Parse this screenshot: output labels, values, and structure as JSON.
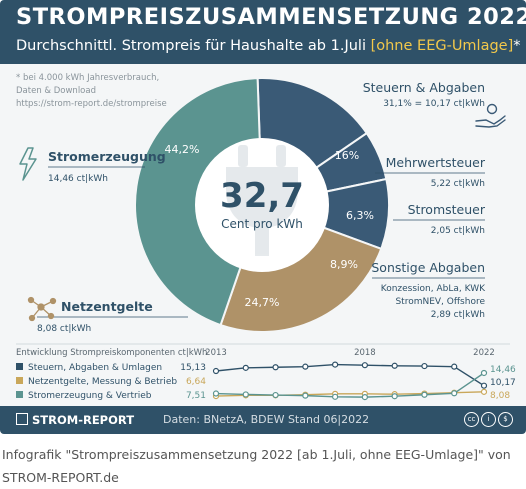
{
  "header": {
    "title": "STROMPREISZUSAMMENSETZUNG 2022",
    "subtitle_main": "Durchschnittl. Strompreis für Haushalte ab 1.Juli",
    "subtitle_highlight": "[ohne EEG-Umlage]",
    "subtitle_end": "*"
  },
  "notes": [
    "* bei 4.000 kWh Jahresverbrauch,",
    "Daten & Download",
    "https://strom-report.de/strompreise"
  ],
  "center": {
    "value": "32,7",
    "unit": "Cent pro kWh"
  },
  "chart_data": [
    {
      "type": "pie",
      "title": "STROMPREISZUSAMMENSETZUNG 2022",
      "slices": [
        {
          "label": "Stromerzeugung",
          "value": 44.2,
          "pct_label": "44,2%",
          "detail": "14,46 ct|kWh",
          "color": "#5b9490"
        },
        {
          "label": "Mehrwertsteuer",
          "value": 16.0,
          "pct_label": "16%",
          "detail": "5,22 ct|kWh",
          "color": "#3a5a76"
        },
        {
          "label": "Stromsteuer",
          "value": 6.3,
          "pct_label": "6,3%",
          "detail": "2,05 ct|kWh",
          "color": "#3a5a76"
        },
        {
          "label": "Sonstige Abgaben",
          "value": 8.9,
          "pct_label": "8,9%",
          "detail": "Konzession, AbLa, KWK",
          "detail2": "StromNEV, Offshore",
          "detail3": "2,89 ct|kWh",
          "color": "#3a5a76"
        },
        {
          "label": "Netzentgelte",
          "value": 24.7,
          "pct_label": "24,7%",
          "detail": "8,08 ct|kWh",
          "color": "#af9268"
        }
      ],
      "group": {
        "label": "Steuern & Abgaben",
        "detail": "31,1% = 10,17 ct|kWh"
      }
    },
    {
      "type": "line",
      "title": "Entwicklung Strompreiskomponenten ct|kWh",
      "x_range": [
        2013,
        2022
      ],
      "x_ticks": [
        "2013",
        "2018",
        "2022"
      ],
      "series": [
        {
          "name": "Steuern, Abgaben & Umlagen",
          "start": 15.13,
          "end": 10.17,
          "start_label": "15,13",
          "end_label": "10,17",
          "color": "#2f5168",
          "values": [
            15.13,
            16.2,
            16.4,
            16.6,
            17.3,
            17.1,
            16.9,
            16.8,
            16.6,
            10.17
          ]
        },
        {
          "name": "Netzentgelte, Messung & Betrieb",
          "start": 6.64,
          "end": 8.08,
          "start_label": "6,64",
          "end_label": "8,08",
          "color": "#c9a75a",
          "values": [
            6.64,
            6.9,
            6.9,
            7.1,
            7.4,
            7.4,
            7.3,
            7.5,
            7.8,
            8.08
          ]
        },
        {
          "name": "Stromerzeugung & Vertrieb",
          "start": 7.51,
          "end": 14.46,
          "start_label": "7,51",
          "end_label": "14,46",
          "color": "#5b9490",
          "values": [
            7.51,
            7.2,
            7.0,
            6.8,
            6.4,
            6.3,
            6.6,
            7.1,
            7.6,
            14.46
          ]
        }
      ]
    }
  ],
  "footer": {
    "brand": "STROM-REPORT",
    "source": "Daten: BNetzA, BDEW  Stand 06|2022",
    "badges": [
      "cc",
      "i",
      "$"
    ]
  },
  "caption": "Infografik \"Strompreiszusammensetzung 2022 [ab 1.Juli, ohne EEG-Umlage]\" von STROM-REPORT.de",
  "colors": {
    "header": "#2f5168",
    "highlight": "#f2c84b",
    "generation": "#5b9490",
    "taxes": "#3a5a76",
    "grid": "#af9268"
  },
  "icons": [
    "lightning-icon",
    "hand-icon",
    "plug-icon",
    "network-icon"
  ]
}
